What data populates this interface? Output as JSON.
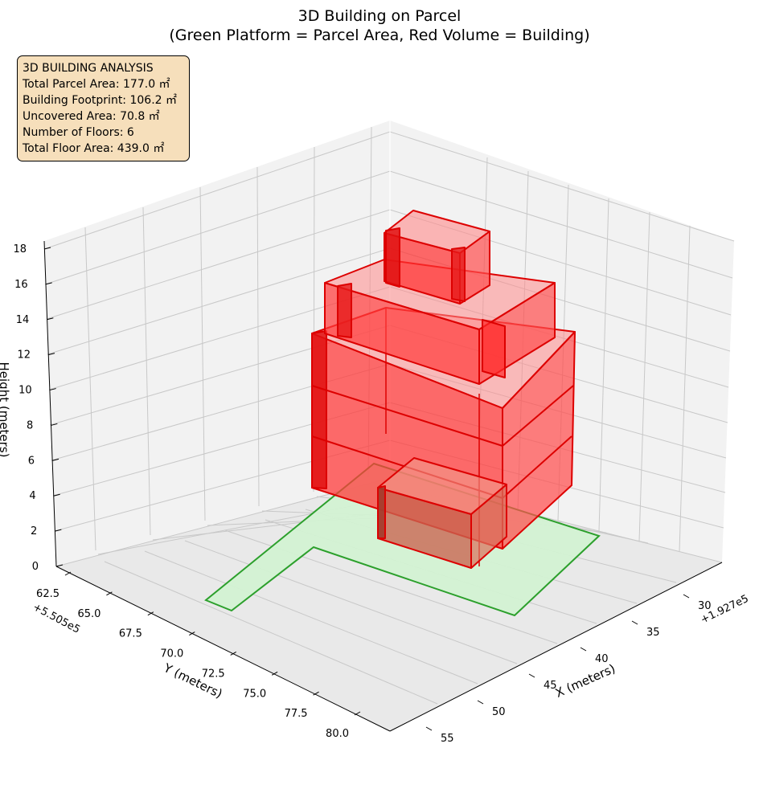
{
  "chart_data": {
    "type": "3d-polygon",
    "title_line1": "3D Building on Parcel",
    "title_line2": "(Green Platform = Parcel Area, Red Volume = Building)",
    "xlabel": "X (meters)",
    "ylabel": "Y (meters)",
    "zlabel": "Height (meters)",
    "x_offset_label": "+1.927e5",
    "y_offset_label": "+5.505e5",
    "x_ticks": [
      "30",
      "35",
      "40",
      "45",
      "50",
      "55"
    ],
    "y_ticks": [
      "62.5",
      "65.0",
      "67.5",
      "70.0",
      "72.5",
      "75.0",
      "77.5",
      "80.0"
    ],
    "z_ticks": [
      "0",
      "2",
      "4",
      "6",
      "8",
      "10",
      "12",
      "14",
      "16",
      "18"
    ],
    "grid": true,
    "colors": {
      "parcel_fill": "#d3f2d3",
      "parcel_edge": "#2ca02c",
      "building_fill": "#ff3333",
      "building_edge": "#dd0000",
      "info_bg": "#f6dfbb"
    },
    "info": {
      "heading": "3D BUILDING ANALYSIS",
      "total_parcel_area": "Total Parcel Area: 177.0 ㎡",
      "building_footprint": "Building Footprint: 106.2 ㎡",
      "uncovered_area": "Uncovered Area: 70.8 ㎡",
      "floors": "Number of Floors: 6",
      "total_floor_area": "Total Floor Area: 439.0 ㎡"
    }
  }
}
